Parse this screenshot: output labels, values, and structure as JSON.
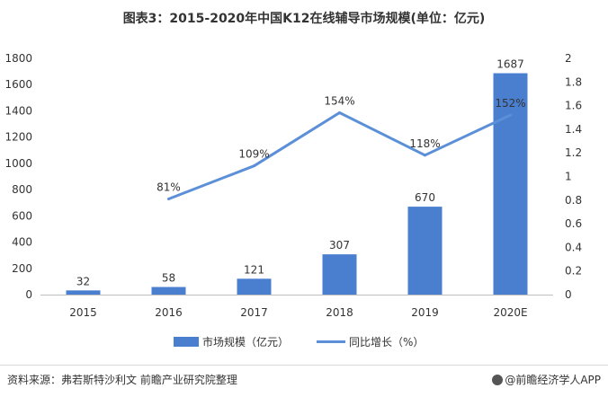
{
  "title": "图表3：2015-2020年中国K12在线辅导市场规模(单位：亿元)",
  "source": "资料来源：弗若斯特沙利文 前瞻产业研究院整理",
  "brand": "@前瞻经济学人APP",
  "colors": {
    "bar": "#4a7fd0",
    "line": "#5b8fd8",
    "text": "#333333",
    "axis": "#595959"
  },
  "chart_data": {
    "type": "bar",
    "categories": [
      "2015",
      "2016",
      "2017",
      "2018",
      "2019",
      "2020E"
    ],
    "series": [
      {
        "name": "市场规模（亿元）",
        "type": "bar",
        "axis": "left",
        "values": [
          32,
          58,
          121,
          307,
          670,
          1687
        ],
        "labels": [
          "32",
          "58",
          "121",
          "307",
          "670",
          "1687"
        ]
      },
      {
        "name": "同比增长（%）",
        "type": "line",
        "axis": "right",
        "values": [
          null,
          0.81,
          1.09,
          1.54,
          1.18,
          1.52
        ],
        "labels": [
          "",
          "81%",
          "109%",
          "154%",
          "118%",
          "152%"
        ]
      }
    ],
    "ylim": [
      0,
      1800
    ],
    "yticks": [
      "0",
      "200",
      "400",
      "600",
      "800",
      "1000",
      "1200",
      "1400",
      "1600",
      "1800"
    ],
    "y2lim": [
      0,
      2
    ],
    "y2ticks": [
      "0",
      "0.2",
      "0.4",
      "0.6",
      "0.8",
      "1",
      "1.2",
      "1.4",
      "1.6",
      "1.8",
      "2"
    ],
    "legend_position": "bottom",
    "grid": false
  }
}
